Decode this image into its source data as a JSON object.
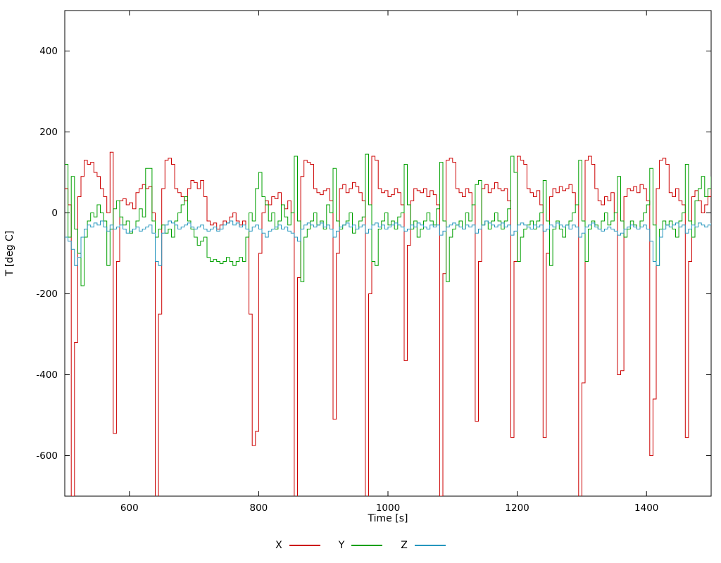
{
  "chart_data": {
    "type": "line",
    "title": "",
    "xlabel": "Time [s]",
    "ylabel": "T [deg C]",
    "xlim": [
      500,
      1500
    ],
    "ylim": [
      -700,
      500
    ],
    "xticks": [
      600,
      800,
      1000,
      1200,
      1400
    ],
    "yticks": [
      -600,
      -400,
      -200,
      0,
      200,
      400
    ],
    "grid": false,
    "line_style": "steps",
    "legend_position": "bottom-center",
    "x_start": 500,
    "x_step": 5,
    "series": [
      {
        "name": "X",
        "color": "#cc0000",
        "values": [
          60,
          20,
          -700,
          -320,
          40,
          90,
          130,
          120,
          125,
          100,
          90,
          60,
          40,
          0,
          150,
          -545,
          -120,
          30,
          35,
          20,
          25,
          10,
          50,
          60,
          70,
          60,
          65,
          0,
          -720,
          -250,
          60,
          130,
          135,
          120,
          60,
          50,
          40,
          30,
          60,
          80,
          75,
          60,
          80,
          40,
          -20,
          -30,
          -25,
          -40,
          -30,
          -20,
          -25,
          -10,
          0,
          -20,
          -30,
          -20,
          -40,
          -250,
          -575,
          -540,
          -100,
          0,
          30,
          20,
          40,
          35,
          50,
          20,
          10,
          30,
          0,
          -740,
          -160,
          90,
          130,
          125,
          120,
          60,
          50,
          45,
          55,
          60,
          30,
          -510,
          -100,
          60,
          70,
          50,
          60,
          75,
          65,
          50,
          30,
          -740,
          -200,
          140,
          130,
          60,
          50,
          55,
          40,
          45,
          60,
          50,
          20,
          -365,
          -80,
          30,
          60,
          55,
          50,
          60,
          40,
          55,
          45,
          20,
          -700,
          -150,
          130,
          135,
          125,
          60,
          50,
          40,
          60,
          50,
          20,
          -515,
          -120,
          60,
          70,
          50,
          60,
          75,
          60,
          55,
          60,
          30,
          -555,
          -120,
          140,
          130,
          120,
          60,
          50,
          40,
          55,
          20,
          -555,
          -100,
          40,
          60,
          50,
          65,
          55,
          60,
          70,
          50,
          20,
          -760,
          -420,
          130,
          140,
          120,
          60,
          30,
          20,
          40,
          30,
          50,
          0,
          -400,
          -390,
          40,
          60,
          55,
          65,
          50,
          70,
          60,
          30,
          -600,
          -460,
          60,
          130,
          135,
          120,
          50,
          40,
          60,
          30,
          20,
          -555,
          -120,
          40,
          55,
          30,
          0,
          20,
          40,
          65
        ]
      },
      {
        "name": "Y",
        "color": "#00a000",
        "values": [
          120,
          -60,
          90,
          -40,
          -100,
          -180,
          -60,
          -20,
          0,
          -10,
          20,
          0,
          -20,
          -130,
          -40,
          10,
          30,
          -10,
          -30,
          -20,
          -50,
          -40,
          -20,
          10,
          -10,
          110,
          110,
          -20,
          -60,
          -40,
          -30,
          -50,
          -40,
          -60,
          -20,
          0,
          20,
          40,
          -20,
          -40,
          -60,
          -80,
          -70,
          -60,
          -110,
          -120,
          -115,
          -120,
          -125,
          -120,
          -110,
          -120,
          -130,
          -120,
          -110,
          -120,
          -60,
          0,
          -20,
          60,
          100,
          40,
          20,
          -20,
          0,
          -40,
          -20,
          20,
          -10,
          -30,
          0,
          140,
          -20,
          -170,
          -60,
          -40,
          -20,
          0,
          -30,
          -20,
          -40,
          20,
          0,
          110,
          -20,
          -40,
          -30,
          -20,
          0,
          -50,
          -40,
          -20,
          -10,
          145,
          20,
          -120,
          -130,
          -40,
          -20,
          0,
          -30,
          -20,
          -40,
          -10,
          0,
          120,
          20,
          -40,
          -20,
          -60,
          -40,
          -20,
          0,
          -20,
          -30,
          10,
          125,
          -20,
          -170,
          -60,
          -40,
          -30,
          -20,
          -40,
          0,
          -20,
          20,
          70,
          80,
          -30,
          -20,
          -40,
          -20,
          0,
          -20,
          -40,
          -20,
          10,
          140,
          100,
          -120,
          -60,
          -40,
          -30,
          -20,
          -40,
          -20,
          0,
          80,
          -20,
          -130,
          -40,
          -20,
          -40,
          -60,
          -30,
          -20,
          0,
          20,
          130,
          -20,
          -120,
          -40,
          -20,
          -30,
          -40,
          -20,
          0,
          -30,
          -20,
          0,
          90,
          -20,
          -60,
          -40,
          -20,
          -30,
          -40,
          -20,
          0,
          20,
          110,
          -30,
          -130,
          -40,
          -20,
          -30,
          -20,
          -40,
          -60,
          -20,
          0,
          120,
          -20,
          -60,
          30,
          60,
          90,
          40,
          60,
          90
        ]
      },
      {
        "name": "Z",
        "color": "#2596be",
        "values": [
          -60,
          -70,
          -90,
          -130,
          -110,
          -60,
          -40,
          -30,
          -35,
          -25,
          -30,
          -20,
          -35,
          -45,
          -30,
          -40,
          -35,
          -30,
          -40,
          -50,
          -45,
          -40,
          -35,
          -45,
          -40,
          -35,
          -30,
          -50,
          -120,
          -130,
          -50,
          -30,
          -20,
          -25,
          -30,
          -40,
          -35,
          -30,
          -25,
          -35,
          -40,
          -35,
          -30,
          -40,
          -45,
          -40,
          -35,
          -45,
          -40,
          -30,
          -25,
          -20,
          -30,
          -25,
          -35,
          -30,
          -40,
          -45,
          -35,
          -30,
          -40,
          -50,
          -60,
          -45,
          -40,
          -35,
          -30,
          -40,
          -35,
          -45,
          -50,
          -60,
          -70,
          -40,
          -30,
          -25,
          -30,
          -35,
          -30,
          -25,
          -35,
          -30,
          -40,
          -60,
          -45,
          -35,
          -30,
          -25,
          -35,
          -30,
          -40,
          -35,
          -30,
          -50,
          -40,
          -30,
          -25,
          -35,
          -30,
          -40,
          -35,
          -30,
          -25,
          -30,
          -35,
          -45,
          -40,
          -30,
          -35,
          -25,
          -30,
          -35,
          -40,
          -30,
          -35,
          -30,
          -55,
          -45,
          -35,
          -30,
          -25,
          -30,
          -35,
          -40,
          -30,
          -35,
          -30,
          -50,
          -40,
          -30,
          -20,
          -25,
          -30,
          -35,
          -30,
          -25,
          -35,
          -30,
          -55,
          -45,
          -30,
          -25,
          -30,
          -35,
          -40,
          -30,
          -35,
          -30,
          -45,
          -40,
          -30,
          -35,
          -25,
          -30,
          -35,
          -30,
          -40,
          -30,
          -35,
          -60,
          -50,
          -35,
          -30,
          -25,
          -35,
          -40,
          -45,
          -40,
          -35,
          -40,
          -45,
          -55,
          -50,
          -40,
          -35,
          -30,
          -35,
          -40,
          -35,
          -30,
          -40,
          -70,
          -120,
          -130,
          -60,
          -40,
          -30,
          -35,
          -30,
          -25,
          -35,
          -30,
          -50,
          -40,
          -30,
          -35,
          -25,
          -30,
          -35,
          -30,
          -25
        ]
      }
    ]
  }
}
